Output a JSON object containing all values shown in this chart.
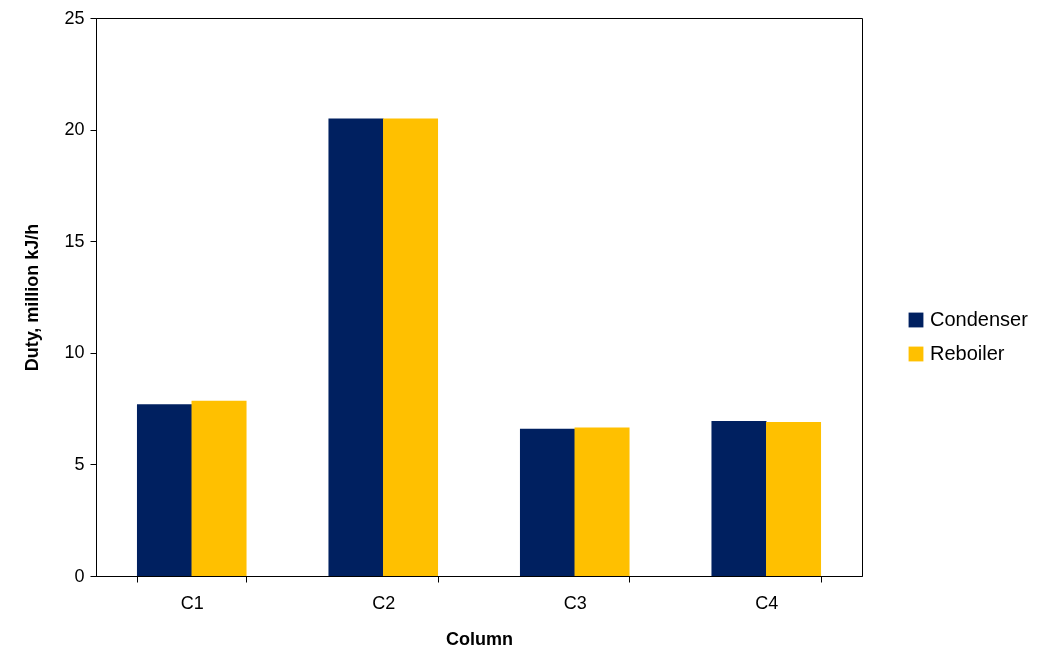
{
  "chart_data": {
    "type": "bar",
    "xlabel": "Column",
    "ylabel": "Duty, million kJ/h",
    "categories": [
      "C1",
      "C2",
      "C3",
      "C4"
    ],
    "series": [
      {
        "name": "Condenser",
        "color": "#002060",
        "values": [
          7.7,
          20.5,
          6.6,
          6.95
        ]
      },
      {
        "name": "Reboiler",
        "color": "#ffc000",
        "values": [
          7.85,
          20.5,
          6.65,
          6.9
        ]
      }
    ],
    "ylim": [
      0,
      25
    ],
    "yticks": [
      0,
      5,
      10,
      15,
      20,
      25
    ],
    "grid": false,
    "legend": "right"
  }
}
